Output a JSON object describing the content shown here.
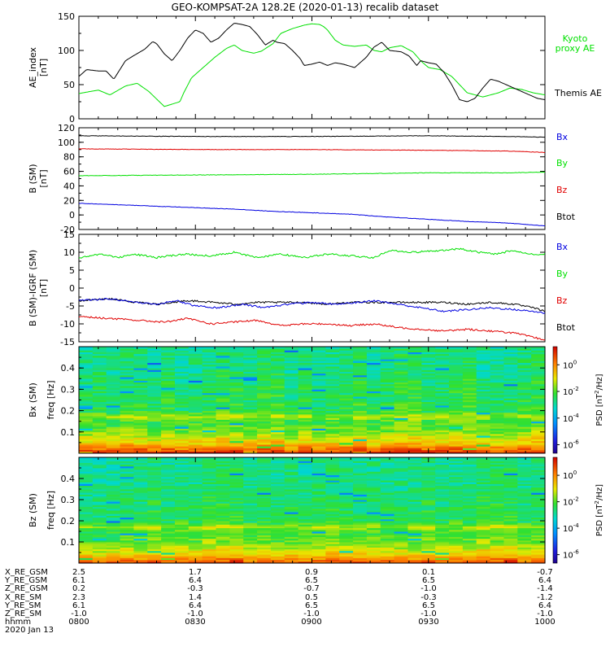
{
  "title": "GEO-KOMPSAT-2A 128.2E (2020-01-13) recalib dataset",
  "colors": {
    "black": "#000000",
    "red": "#e00000",
    "green": "#00e000",
    "blue": "#0000e0"
  },
  "chart_data": [
    {
      "type": "line",
      "panel": "ae_index",
      "ylabel": "AE_index",
      "yunit": "[nT]",
      "ylim": [
        0,
        150
      ],
      "yticks": [
        0,
        50,
        100,
        150
      ],
      "xlim": [
        0,
        120
      ],
      "xunit": "minutes since 0800 UT",
      "series": [
        {
          "name": "Kyoto proxy AE",
          "legend": [
            "Kyoto",
            "proxy AE"
          ],
          "color": "#00e000",
          "x": [
            0,
            5,
            8,
            12,
            15,
            18,
            22,
            26,
            27,
            29,
            32,
            35,
            38,
            40,
            42,
            45,
            47,
            50,
            52,
            55,
            58,
            60,
            62,
            63,
            64,
            66,
            68,
            71,
            74,
            76,
            78,
            80,
            83,
            86,
            88,
            90,
            93,
            96,
            100,
            104,
            108,
            111,
            114,
            117,
            120
          ],
          "y": [
            37,
            42,
            35,
            48,
            52,
            40,
            18,
            25,
            38,
            60,
            75,
            90,
            103,
            108,
            100,
            96,
            99,
            110,
            125,
            132,
            137,
            139,
            138,
            135,
            130,
            115,
            108,
            106,
            108,
            100,
            98,
            104,
            107,
            98,
            85,
            75,
            72,
            62,
            38,
            32,
            38,
            45,
            43,
            38,
            35
          ]
        },
        {
          "name": "Themis AE",
          "legend": [
            "Themis AE"
          ],
          "color": "#000000",
          "x": [
            0,
            2,
            5,
            7,
            9,
            12,
            14,
            17,
            19,
            20,
            22,
            24,
            26,
            28,
            30,
            32,
            34,
            36,
            38,
            40,
            42,
            44,
            46,
            48,
            50,
            51,
            53,
            55,
            57,
            58,
            60,
            62,
            64,
            66,
            68,
            71,
            74,
            76,
            78,
            80,
            83,
            85,
            87,
            88,
            90,
            92,
            94,
            96,
            98,
            100,
            102,
            104,
            106,
            108,
            110,
            112,
            114,
            116,
            118,
            120
          ],
          "y": [
            62,
            72,
            70,
            70,
            58,
            85,
            92,
            102,
            113,
            110,
            95,
            85,
            100,
            118,
            130,
            125,
            112,
            118,
            130,
            140,
            138,
            135,
            123,
            108,
            115,
            112,
            110,
            100,
            88,
            78,
            80,
            83,
            78,
            82,
            80,
            75,
            90,
            105,
            112,
            100,
            98,
            92,
            78,
            85,
            82,
            80,
            68,
            50,
            28,
            25,
            30,
            45,
            58,
            55,
            50,
            45,
            40,
            35,
            30,
            28
          ]
        }
      ]
    },
    {
      "type": "line",
      "panel": "b_sm",
      "ylabel": "B (SM)",
      "yunit": "[nT]",
      "ylim": [
        -20,
        120
      ],
      "yticks": [
        -20,
        0,
        20,
        40,
        60,
        80,
        100,
        120
      ],
      "xlim": [
        0,
        120
      ],
      "legend": [
        "Bx",
        "By",
        "Bz",
        "Btot"
      ],
      "series": [
        {
          "name": "Btot",
          "color": "#000000",
          "x": [
            0,
            30,
            60,
            90,
            110,
            120
          ],
          "y": [
            109,
            108,
            108,
            109,
            108,
            107
          ]
        },
        {
          "name": "Bz",
          "color": "#e00000",
          "x": [
            0,
            30,
            60,
            90,
            110,
            120
          ],
          "y": [
            91,
            90,
            90,
            89,
            88,
            86
          ]
        },
        {
          "name": "By",
          "color": "#00e000",
          "x": [
            0,
            30,
            60,
            90,
            110,
            120
          ],
          "y": [
            54,
            55,
            56,
            58,
            58,
            59
          ]
        },
        {
          "name": "Bx",
          "color": "#0000e0",
          "x": [
            0,
            10,
            20,
            30,
            40,
            50,
            60,
            70,
            80,
            90,
            100,
            110,
            120
          ],
          "y": [
            16,
            14,
            12,
            10,
            8,
            5,
            3,
            1,
            -3,
            -6,
            -9,
            -11,
            -15
          ]
        }
      ]
    },
    {
      "type": "line",
      "panel": "b_minus_igrf",
      "ylabel": "B (SM)-IGRF (SM)",
      "yunit": "[nT]",
      "ylim": [
        -15,
        15
      ],
      "yticks": [
        -15,
        -10,
        -5,
        0,
        5,
        10,
        15
      ],
      "xlim": [
        0,
        120
      ],
      "legend": [
        "Bx",
        "By",
        "Bz",
        "Btot"
      ],
      "series": [
        {
          "name": "By",
          "color": "#00e000",
          "x": [
            0,
            6,
            10,
            14,
            20,
            27,
            34,
            40,
            46,
            52,
            58,
            64,
            70,
            76,
            80,
            86,
            93,
            98,
            103,
            107,
            112,
            116,
            120
          ],
          "y": [
            8.5,
            9.5,
            8.5,
            9.5,
            8.5,
            9.5,
            9.0,
            10.0,
            8.5,
            9.5,
            8.5,
            9.5,
            9.0,
            8.5,
            10.5,
            10.0,
            10.5,
            11.0,
            10.0,
            9.5,
            10.5,
            9.5,
            9.5
          ]
        },
        {
          "name": "Btot",
          "color": "#000000",
          "x": [
            0,
            8,
            15,
            20,
            28,
            35,
            40,
            46,
            52,
            58,
            64,
            70,
            76,
            82,
            88,
            94,
            100,
            106,
            112,
            117,
            120
          ],
          "y": [
            -3.5,
            -3.0,
            -4.0,
            -4.5,
            -3.5,
            -4.0,
            -4.5,
            -4.0,
            -4.0,
            -4.0,
            -4.5,
            -4.0,
            -4.0,
            -4.0,
            -4.0,
            -4.0,
            -4.5,
            -4.0,
            -4.5,
            -5.5,
            -6.5
          ]
        },
        {
          "name": "Bx",
          "color": "#0000e0",
          "x": [
            0,
            8,
            15,
            20,
            25,
            30,
            36,
            42,
            48,
            54,
            60,
            66,
            72,
            76,
            82,
            88,
            94,
            100,
            106,
            112,
            117,
            120
          ],
          "y": [
            -3.5,
            -3.0,
            -4.0,
            -4.5,
            -3.5,
            -5.0,
            -5.5,
            -4.5,
            -5.5,
            -4.5,
            -4.0,
            -4.5,
            -4.0,
            -3.5,
            -4.5,
            -5.5,
            -6.5,
            -6.0,
            -5.5,
            -6.0,
            -6.5,
            -7.0
          ]
        },
        {
          "name": "Bz",
          "color": "#e00000",
          "x": [
            0,
            8,
            15,
            22,
            28,
            34,
            40,
            46,
            52,
            58,
            64,
            70,
            76,
            82,
            88,
            94,
            100,
            106,
            112,
            116,
            120
          ],
          "y": [
            -8.0,
            -8.5,
            -9.0,
            -9.5,
            -8.5,
            -10.0,
            -9.5,
            -9.0,
            -10.5,
            -10.0,
            -10.0,
            -10.5,
            -10.0,
            -11.0,
            -11.5,
            -12.0,
            -11.5,
            -12.0,
            -12.5,
            -13.5,
            -14.5
          ]
        }
      ]
    },
    {
      "type": "heatmap",
      "panel": "bx_spectrogram",
      "ylabel": "Bx (SM)",
      "ylabel2": "freq [Hz]",
      "ylim": [
        0,
        0.5
      ],
      "yticks": [
        0.1,
        0.2,
        0.3,
        0.4
      ],
      "xlim": [
        0,
        120
      ],
      "colorbar_label": "PSD [nT^2/Hz]",
      "colorbar_ticks": [
        "10^0",
        "10^-2",
        "10^-4",
        "10^-6"
      ],
      "log10_psd_profile": {
        "freq": [
          0.0,
          0.02,
          0.05,
          0.1,
          0.15,
          0.17,
          0.2,
          0.25,
          0.3,
          0.35,
          0.4,
          0.45,
          0.5
        ],
        "log10": [
          1.2,
          0.2,
          -1.0,
          -2.1,
          -2.6,
          -1.8,
          -2.9,
          -3.0,
          -3.1,
          -3.2,
          -3.3,
          -3.3,
          -3.4
        ]
      }
    },
    {
      "type": "heatmap",
      "panel": "bz_spectrogram",
      "ylabel": "Bz (SM)",
      "ylabel2": "freq [Hz]",
      "ylim": [
        0,
        0.5
      ],
      "yticks": [
        0.1,
        0.2,
        0.3,
        0.4
      ],
      "xlim": [
        0,
        120
      ],
      "colorbar_label": "PSD [nT^2/Hz]",
      "colorbar_ticks": [
        "10^0",
        "10^-2",
        "10^-4",
        "10^-6"
      ],
      "log10_psd_profile": {
        "freq": [
          0.0,
          0.02,
          0.05,
          0.1,
          0.15,
          0.17,
          0.2,
          0.25,
          0.3,
          0.35,
          0.4,
          0.45,
          0.5
        ],
        "log10": [
          0.8,
          -0.3,
          -1.3,
          -2.3,
          -2.7,
          -1.9,
          -3.0,
          -3.1,
          -3.2,
          -3.3,
          -3.4,
          -3.4,
          -3.5
        ]
      }
    }
  ],
  "ephemeris": {
    "labels": [
      "X_RE_GSM",
      "Y_RE_GSM",
      "Z_RE_GSM",
      "X_RE_SM",
      "Y_RE_SM",
      "Z_RE_SM",
      "hhmm",
      "2020 Jan 13"
    ],
    "columns": [
      [
        "2.5",
        "6.1",
        "0.2",
        "2.3",
        "6.1",
        "-1.0",
        "0800"
      ],
      [
        "1.7",
        "6.4",
        "-0.3",
        "1.4",
        "6.4",
        "-1.0",
        "0830"
      ],
      [
        "0.9",
        "6.5",
        "-0.7",
        "0.5",
        "6.5",
        "-1.0",
        "0900"
      ],
      [
        "0.1",
        "6.5",
        "-1.0",
        "-0.3",
        "6.5",
        "-1.0",
        "0930"
      ],
      [
        "-0.7",
        "6.4",
        "-1.4",
        "-1.2",
        "6.4",
        "-1.0",
        "1000"
      ]
    ]
  }
}
